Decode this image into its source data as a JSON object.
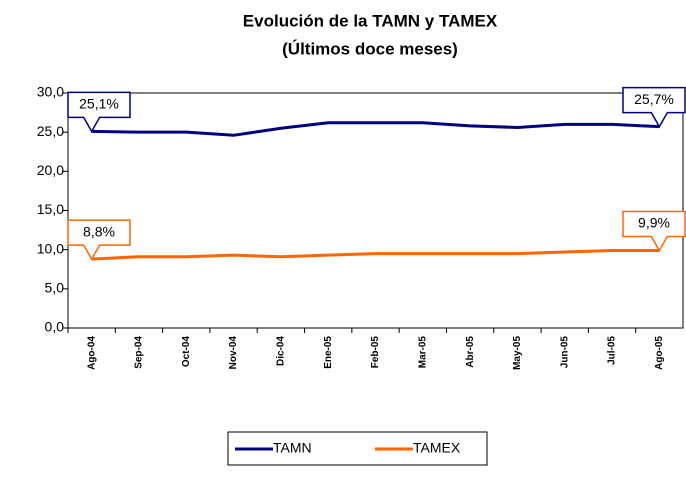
{
  "chart_data": {
    "type": "line",
    "title": "Evolución de la TAMN y TAMEX",
    "subtitle": "(Últimos doce meses)",
    "categories": [
      "Ago-04",
      "Sep-04",
      "Oct-04",
      "Nov-04",
      "Dic-04",
      "Ene-05",
      "Feb-05",
      "Mar-05",
      "Abr-05",
      "May-05",
      "Jun-05",
      "Jul-05",
      "Ago-05"
    ],
    "series": [
      {
        "name": "TAMN",
        "color": "#000080",
        "label_color": "#000080",
        "values": [
          25.1,
          25.0,
          25.0,
          24.6,
          25.5,
          26.2,
          26.2,
          26.2,
          25.8,
          25.6,
          26.0,
          26.0,
          25.7
        ],
        "value_labels": [
          "25,1%",
          null,
          null,
          null,
          null,
          null,
          null,
          null,
          null,
          null,
          null,
          null,
          "25,7%"
        ]
      },
      {
        "name": "TAMEX",
        "color": "#ff6600",
        "label_color": "#e8001c",
        "values": [
          8.8,
          9.1,
          9.1,
          9.3,
          9.1,
          9.3,
          9.5,
          9.5,
          9.5,
          9.5,
          9.7,
          9.9,
          9.9
        ],
        "value_labels": [
          "8,8%",
          null,
          null,
          null,
          null,
          null,
          null,
          null,
          null,
          null,
          null,
          null,
          "9,9%"
        ]
      }
    ],
    "ylim": [
      0,
      30
    ],
    "yticks": [
      {
        "value": 0,
        "label": "0,0"
      },
      {
        "value": 5,
        "label": "5,0"
      },
      {
        "value": 10,
        "label": "10,0"
      },
      {
        "value": 15,
        "label": "15,0"
      },
      {
        "value": 20,
        "label": "20,0"
      },
      {
        "value": 25,
        "label": "25,0"
      },
      {
        "value": 30,
        "label": "30,0"
      }
    ],
    "grid": false
  }
}
